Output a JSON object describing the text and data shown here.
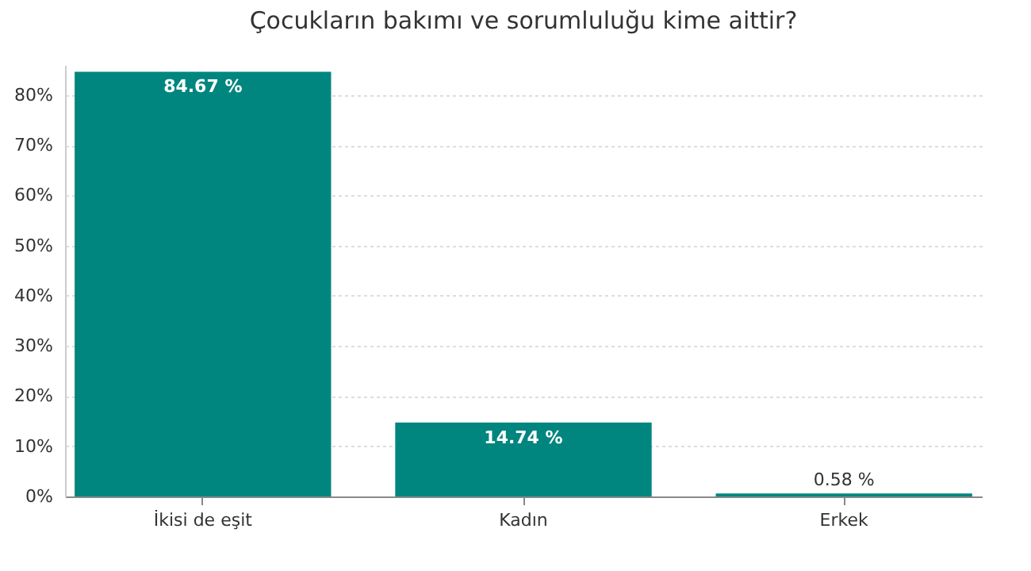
{
  "chart_data": {
    "type": "bar",
    "title": "Çocukların bakımı ve sorumluluğu kime aittir?",
    "categories": [
      "İkisi de eşit",
      "Kadın",
      "Erkek"
    ],
    "values": [
      84.67,
      14.74,
      0.58
    ],
    "value_labels": [
      "84.67 %",
      "14.74 %",
      "0.58 %"
    ],
    "color": "#00867f",
    "ylim": [
      0,
      86
    ],
    "yticks": [
      {
        "value": 0,
        "label": "0%"
      },
      {
        "value": 10,
        "label": "10%"
      },
      {
        "value": 20,
        "label": "20%"
      },
      {
        "value": 30,
        "label": "30%"
      },
      {
        "value": 40,
        "label": "40%"
      },
      {
        "value": 50,
        "label": "50%"
      },
      {
        "value": 60,
        "label": "60%"
      },
      {
        "value": 70,
        "label": "70%"
      },
      {
        "value": 80,
        "label": "80%"
      }
    ],
    "grid": "y"
  }
}
